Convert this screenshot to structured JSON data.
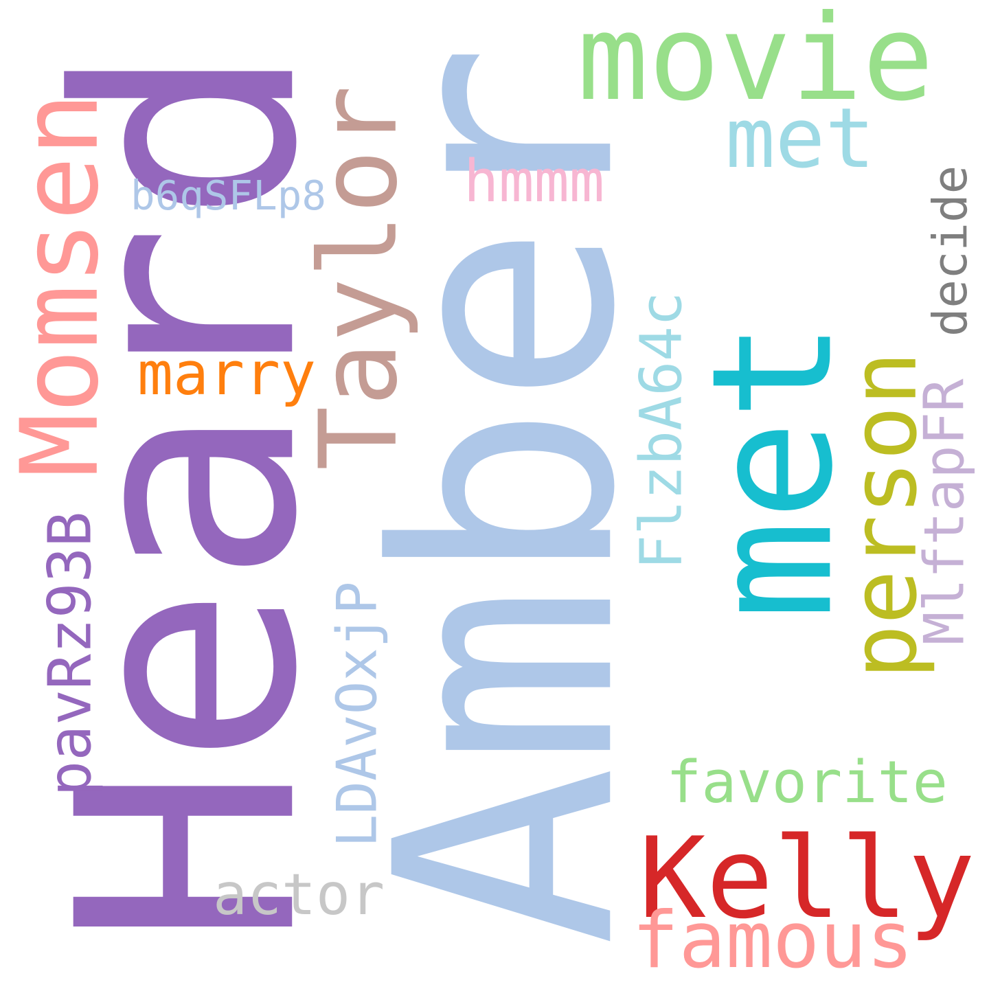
{
  "words": [
    {
      "text": "Amber",
      "color": "#aec7e8",
      "orientation": "vertical"
    },
    {
      "text": "Heard",
      "color": "#9467bd",
      "orientation": "vertical"
    },
    {
      "text": "met",
      "color": "#17becf",
      "orientation": "vertical"
    },
    {
      "text": "Taylor",
      "color": "#c49c94",
      "orientation": "vertical"
    },
    {
      "text": "Momsen",
      "color": "#ff9896",
      "orientation": "vertical"
    },
    {
      "text": "movie",
      "color": "#98df8a",
      "orientation": "horizontal"
    },
    {
      "text": "person",
      "color": "#bcbd22",
      "orientation": "vertical"
    },
    {
      "text": "Kelly",
      "color": "#d62728",
      "orientation": "horizontal"
    },
    {
      "text": "met",
      "color": "#9edae5",
      "orientation": "horizontal"
    },
    {
      "text": "famous",
      "color": "#ff9896",
      "orientation": "horizontal"
    },
    {
      "text": "decide",
      "color": "#7f7f7f",
      "orientation": "vertical"
    },
    {
      "text": "favorite",
      "color": "#98df8a",
      "orientation": "horizontal"
    },
    {
      "text": "actor",
      "color": "#c7c7c7",
      "orientation": "horizontal"
    },
    {
      "text": "marry",
      "color": "#ff7f0e",
      "orientation": "horizontal"
    },
    {
      "text": "hmmm",
      "color": "#f7b6d2",
      "orientation": "horizontal"
    },
    {
      "text": "b6qSFLp8",
      "color": "#aec7e8",
      "orientation": "horizontal"
    },
    {
      "text": "pavRz93B",
      "color": "#9467bd",
      "orientation": "vertical"
    },
    {
      "text": "LDAvOxjP",
      "color": "#aec7e8",
      "orientation": "vertical"
    },
    {
      "text": "FlzbA64c",
      "color": "#9edae5",
      "orientation": "vertical"
    },
    {
      "text": "MlftapFR",
      "color": "#c5b0d5",
      "orientation": "vertical"
    }
  ]
}
